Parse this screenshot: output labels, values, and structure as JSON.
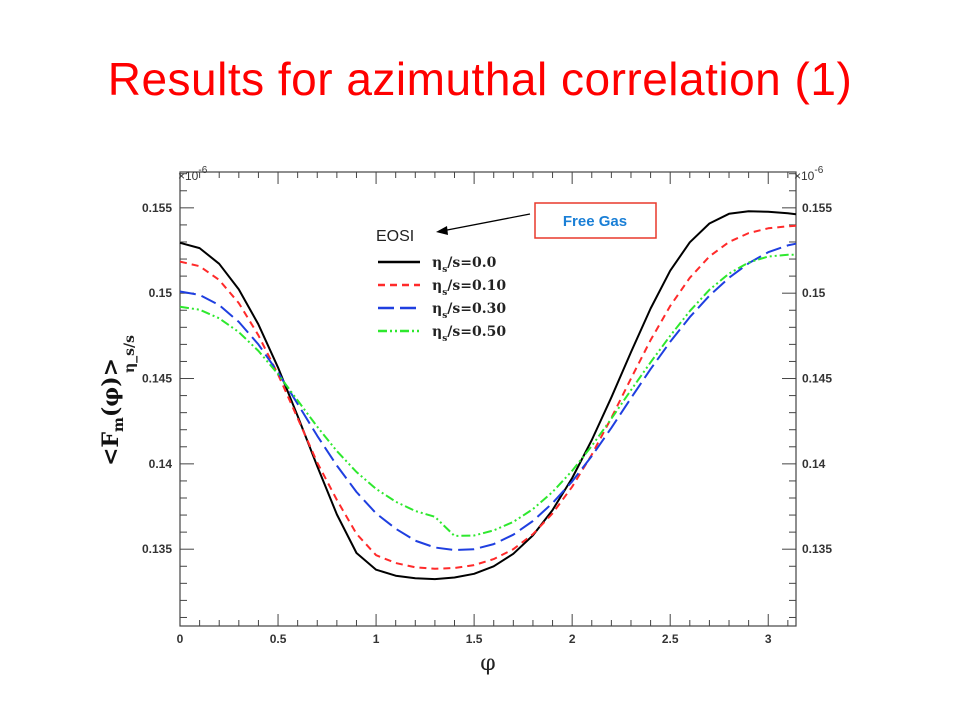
{
  "slide": {
    "title": "Results for azimuthal correlation (1)"
  },
  "chart_data": {
    "type": "line",
    "title": "",
    "xlabel": "φ",
    "ylabel": "<F_m(φ)>",
    "ylabel_sub": "m",
    "ylabel_suffix": "η_s/s",
    "y_scale_label": "×10",
    "y_scale_exponent": "-6",
    "xlim": [
      0,
      3.1416
    ],
    "ylim": [
      0.1305,
      0.1571
    ],
    "xticks": [
      0,
      0.5,
      1,
      1.5,
      2,
      2.5,
      3
    ],
    "xtick_labels": [
      "0",
      "0.5",
      "1",
      "1.5",
      "2",
      "2.5",
      "3"
    ],
    "yticks": [
      0.135,
      0.14,
      0.145,
      0.15,
      0.155
    ],
    "ytick_labels": [
      "0.135",
      "0.14",
      "0.145",
      "0.15",
      "0.155"
    ],
    "grid": false,
    "legend_title": "EOSI",
    "legend_position": "top-center",
    "annotation": {
      "text": "Free Gas",
      "color": "#1a7fd6",
      "border": "#e8392b"
    },
    "x": [
      0,
      0.1,
      0.2,
      0.3,
      0.4,
      0.5,
      0.6,
      0.7,
      0.8,
      0.9,
      1.0,
      1.1,
      1.2,
      1.3,
      1.4,
      1.5,
      1.6,
      1.7,
      1.8,
      1.9,
      2.0,
      2.1,
      2.2,
      2.3,
      2.4,
      2.5,
      2.6,
      2.7,
      2.8,
      2.9,
      3.0,
      3.1,
      3.1416
    ],
    "series": [
      {
        "name": "η_s/s=0.0",
        "label_main": "η",
        "label_sub": "s",
        "label_rest": "/s=0.0",
        "color": "#000000",
        "dash": "",
        "width": 2,
        "values": [
          0.15295,
          0.15264,
          0.15172,
          0.15022,
          0.14817,
          0.14565,
          0.14281,
          0.13985,
          0.13703,
          0.13478,
          0.1338,
          0.13345,
          0.1333,
          0.13325,
          0.13334,
          0.13356,
          0.134,
          0.13473,
          0.13581,
          0.13729,
          0.13917,
          0.1414,
          0.1439,
          0.14655,
          0.1491,
          0.15132,
          0.15298,
          0.15408,
          0.15465,
          0.1548,
          0.15477,
          0.15468,
          0.15462
        ]
      },
      {
        "name": "η_s/s=0.10",
        "label_main": "η",
        "label_sub": "s",
        "label_rest": "/s=0.10",
        "color": "#ff2a2a",
        "dash": "7,5",
        "width": 2,
        "values": [
          0.15185,
          0.15158,
          0.15077,
          0.14942,
          0.14753,
          0.14525,
          0.14268,
          0.14007,
          0.13788,
          0.1359,
          0.13465,
          0.13419,
          0.13394,
          0.13385,
          0.1339,
          0.13407,
          0.13442,
          0.135,
          0.13588,
          0.1371,
          0.13866,
          0.14054,
          0.1427,
          0.145,
          0.14725,
          0.14925,
          0.1509,
          0.15215,
          0.153,
          0.15352,
          0.1538,
          0.15392,
          0.15395
        ]
      },
      {
        "name": "η_s/s=0.30",
        "label_main": "η",
        "label_sub": "s",
        "label_rest": "/s=0.30",
        "color": "#1f3fe0",
        "dash": "16,6",
        "width": 2,
        "values": [
          0.1501,
          0.1499,
          0.1493,
          0.14832,
          0.147,
          0.14536,
          0.14352,
          0.14164,
          0.1399,
          0.13835,
          0.1371,
          0.1362,
          0.1355,
          0.1351,
          0.13495,
          0.135,
          0.1353,
          0.13585,
          0.13665,
          0.1377,
          0.13897,
          0.14046,
          0.14211,
          0.14385,
          0.14555,
          0.14715,
          0.1486,
          0.14985,
          0.1509,
          0.15175,
          0.1524,
          0.1528,
          0.1529
        ]
      },
      {
        "name": "η_s/s=0.50",
        "label_main": "η",
        "label_sub": "s",
        "label_rest": "/s=0.50",
        "color": "#2ee82e",
        "dash": "9,3,2,3,2,3",
        "width": 2,
        "values": [
          0.1492,
          0.14903,
          0.14853,
          0.14772,
          0.14662,
          0.14526,
          0.14372,
          0.14217,
          0.14075,
          0.13952,
          0.13853,
          0.13778,
          0.13724,
          0.1369,
          0.13578,
          0.1358,
          0.1361,
          0.1366,
          0.13735,
          0.13835,
          0.1396,
          0.14105,
          0.14265,
          0.14432,
          0.14595,
          0.1475,
          0.14895,
          0.1502,
          0.15115,
          0.1518,
          0.15215,
          0.15225,
          0.15225
        ]
      }
    ]
  }
}
